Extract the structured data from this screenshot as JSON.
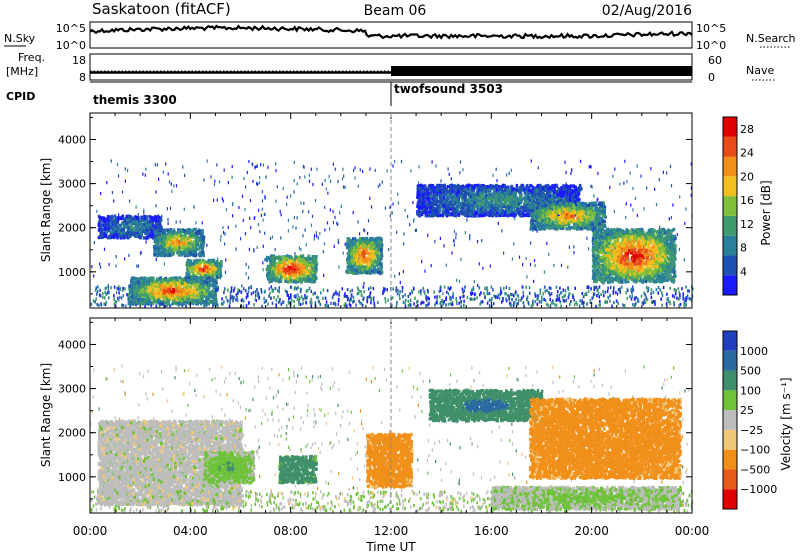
{
  "header": {
    "title": "Saskatoon (fitACF)",
    "beam": "Beam 06",
    "date": "02/Aug/2016"
  },
  "aux": {
    "nsky_label": "N.Sky",
    "nsearch_label": "N.Search",
    "noise_ticks": [
      "10^5",
      "10^0"
    ],
    "freq_label_1": "Freq.",
    "freq_label_2": "[MHz]",
    "freq_ticks": [
      "18",
      "8"
    ],
    "nave_label": "Nave",
    "nave_ticks": [
      "60",
      "0"
    ],
    "cpid_label": "CPID",
    "cpid_segments": [
      {
        "name": "themis 3300",
        "start": "00:00",
        "end": "12:00"
      },
      {
        "name": "twofsound 3503",
        "start": "12:00",
        "end": "24:00"
      }
    ]
  },
  "colors": {
    "power": [
      "#1a1aff",
      "#1f4fb0",
      "#2a7f9a",
      "#3f9a6e",
      "#7fbf3a",
      "#f0c020",
      "#f0901a",
      "#e84a1a",
      "#e00000"
    ],
    "velocity": [
      "#1f3fbf",
      "#2a6aa0",
      "#3f8f6a",
      "#6fc33a",
      "#bdbdbd",
      "#f0c878",
      "#f0901a",
      "#e85a1a",
      "#e00000"
    ]
  },
  "chart_data": [
    {
      "type": "heatmap",
      "name": "power",
      "xlabel": "",
      "ylabel": "Slant Range [km]",
      "x_ticks": [
        "00:00",
        "04:00",
        "08:00",
        "12:00",
        "16:00",
        "20:00",
        "00:00"
      ],
      "y_ticks": [
        1000,
        2000,
        3000,
        4000
      ],
      "xlim": [
        0,
        24
      ],
      "ylim": [
        180,
        4600
      ],
      "colorbar_label": "Power [dB]",
      "colorbar_ticks": [
        4,
        8,
        12,
        16,
        20,
        24,
        28
      ],
      "colorbar_range": [
        0,
        30
      ],
      "features": [
        {
          "t0": 0.3,
          "t1": 2.8,
          "r0": 1800,
          "r1": 2300,
          "level": 9
        },
        {
          "t0": 2.5,
          "t1": 4.5,
          "r0": 1400,
          "r1": 2000,
          "level": 20
        },
        {
          "t0": 3.8,
          "t1": 5.2,
          "r0": 900,
          "r1": 1300,
          "level": 26
        },
        {
          "t0": 1.5,
          "t1": 5.0,
          "r0": 300,
          "r1": 900,
          "level": 24
        },
        {
          "t0": 7.0,
          "t1": 9.0,
          "r0": 800,
          "r1": 1400,
          "level": 28
        },
        {
          "t0": 10.2,
          "t1": 11.6,
          "r0": 1000,
          "r1": 1800,
          "level": 24
        },
        {
          "t0": 13.0,
          "t1": 19.5,
          "r0": 2300,
          "r1": 3000,
          "level": 10
        },
        {
          "t0": 17.5,
          "t1": 20.5,
          "r0": 2000,
          "r1": 2600,
          "level": 22
        },
        {
          "t0": 20.0,
          "t1": 23.3,
          "r0": 800,
          "r1": 2000,
          "level": 27
        }
      ]
    },
    {
      "type": "heatmap",
      "name": "velocity",
      "xlabel": "Time UT",
      "ylabel": "Slant Range [km]",
      "x_ticks": [
        "00:00",
        "04:00",
        "08:00",
        "12:00",
        "16:00",
        "20:00",
        "00:00"
      ],
      "y_ticks": [
        1000,
        2000,
        3000,
        4000
      ],
      "xlim": [
        0,
        24
      ],
      "ylim": [
        180,
        4600
      ],
      "colorbar_label": "Velocity [m s⁻¹]",
      "colorbar_ticks": [
        "1000",
        "500",
        "100",
        "25",
        "−25",
        "−100",
        "−500",
        "−1000"
      ],
      "features": [
        {
          "t0": 0.3,
          "t1": 6.0,
          "r0": 400,
          "r1": 2300,
          "level": 0
        },
        {
          "t0": 4.5,
          "t1": 6.5,
          "r0": 900,
          "r1": 1600,
          "level": 80
        },
        {
          "t0": 7.5,
          "t1": 9.0,
          "r0": 900,
          "r1": 1500,
          "level": 300
        },
        {
          "t0": 11.0,
          "t1": 12.8,
          "r0": 800,
          "r1": 2000,
          "level": -300
        },
        {
          "t0": 13.5,
          "t1": 18.0,
          "r0": 2300,
          "r1": 3000,
          "level": 500
        },
        {
          "t0": 17.5,
          "t1": 23.5,
          "r0": 1000,
          "r1": 2800,
          "level": -300
        },
        {
          "t0": 16.0,
          "t1": 23.5,
          "r0": 300,
          "r1": 800,
          "level": 40
        }
      ]
    }
  ]
}
